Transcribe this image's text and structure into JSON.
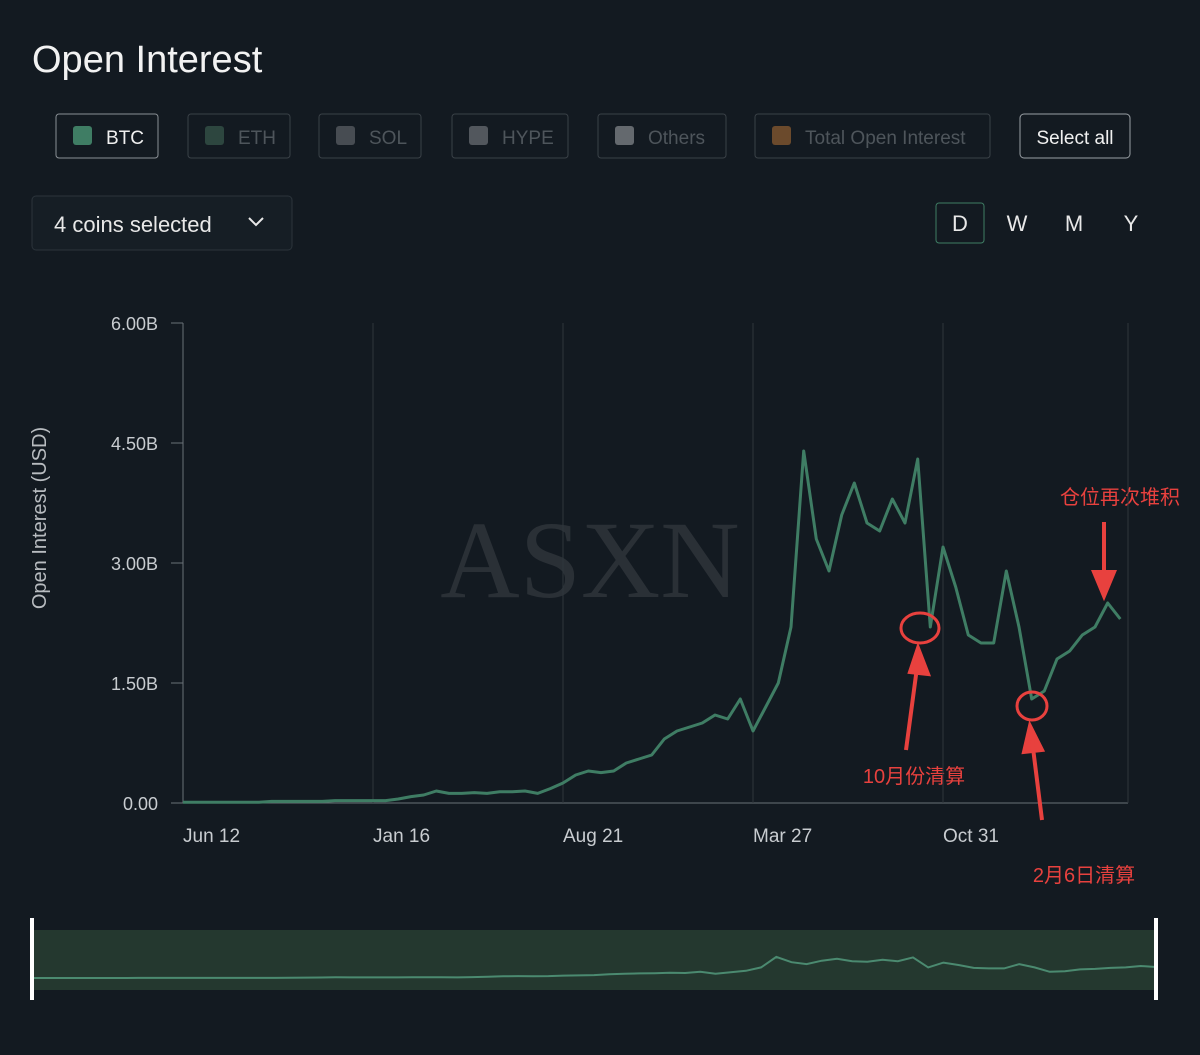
{
  "header": {
    "title": "Open Interest",
    "coins_selected": "4 coins selected",
    "select_all": "Select all",
    "periods": [
      "D",
      "W",
      "M",
      "Y"
    ],
    "watermark": "ASXN"
  },
  "filters": [
    {
      "label": "ETH",
      "color": "#2d463f"
    },
    {
      "label": "SOL",
      "color": "#474c52"
    },
    {
      "label": "HYPE",
      "color": "#52575d"
    },
    {
      "label": "Others",
      "color": "#64696e"
    },
    {
      "label": "Total Open Interest",
      "color": "#6b4a2c"
    }
  ],
  "chart_data": {
    "type": "line",
    "y_label": "Open Interest (USD)",
    "categories": [
      "Jun 12",
      null,
      null,
      null,
      null,
      null,
      null,
      null,
      null,
      null,
      null,
      null,
      null,
      null,
      null,
      "Jan 16",
      null,
      null,
      null,
      null,
      null,
      null,
      null,
      null,
      null,
      null,
      null,
      null,
      null,
      null,
      "Aug 21",
      null,
      null,
      null,
      null,
      null,
      null,
      null,
      null,
      null,
      null,
      null,
      null,
      null,
      null,
      "Mar 27",
      null,
      null,
      null,
      null,
      null,
      null,
      null,
      null,
      null,
      null,
      null,
      null,
      null,
      null,
      "Oct 31",
      null,
      null,
      null,
      null,
      null,
      null,
      null,
      null,
      null,
      null,
      null,
      null,
      null,
      null
    ],
    "series": [
      {
        "name": "BTC",
        "color": "#3f7d64",
        "values": [
          0.01,
          0.01,
          0.01,
          0.01,
          0.01,
          0.01,
          0.01,
          0.02,
          0.02,
          0.02,
          0.02,
          0.02,
          0.03,
          0.03,
          0.03,
          0.03,
          0.03,
          0.05,
          0.08,
          0.1,
          0.15,
          0.12,
          0.12,
          0.13,
          0.12,
          0.14,
          0.14,
          0.15,
          0.12,
          0.18,
          0.25,
          0.35,
          0.4,
          0.38,
          0.4,
          0.5,
          0.55,
          0.6,
          0.8,
          0.9,
          0.95,
          1.0,
          1.1,
          1.05,
          1.3,
          0.9,
          1.2,
          1.5,
          2.2,
          4.4,
          3.3,
          2.9,
          3.6,
          4.0,
          3.5,
          3.4,
          3.8,
          3.5,
          4.3,
          2.2,
          3.2,
          2.7,
          2.1,
          2.0,
          2.0,
          2.9,
          2.2,
          1.3,
          1.4,
          1.8,
          1.9,
          2.1,
          2.2,
          2.5,
          2.3
        ]
      }
    ],
    "ylim": [
      0,
      6
    ],
    "yticks": [
      {
        "value": 0,
        "label": "0.00"
      },
      {
        "value": 1.5,
        "label": "1.50B"
      },
      {
        "value": 3,
        "label": "3.00B"
      },
      {
        "value": 4.5,
        "label": "4.50B"
      },
      {
        "value": 6,
        "label": "6.00B"
      }
    ],
    "annotations": [
      "10月份清算",
      "2月6日清算",
      "仓位再次堆积"
    ]
  }
}
